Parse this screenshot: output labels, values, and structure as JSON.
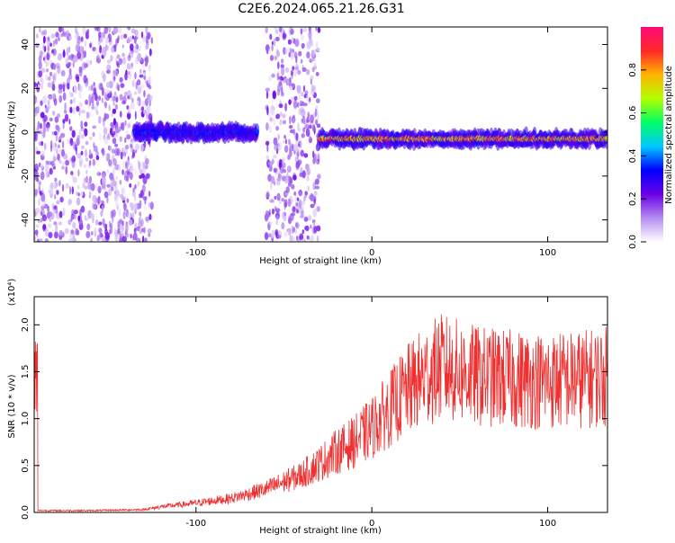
{
  "title": "C2E6.2024.065.21.26.G31",
  "chart_data": [
    {
      "type": "heatmap",
      "xlabel": "Height of straight line (km)",
      "ylabel": "Frequency (Hz)",
      "xlim": [
        -192,
        134
      ],
      "ylim": [
        -50,
        48
      ],
      "xticks": [
        -100,
        0,
        100
      ],
      "yticks": [
        -40,
        -20,
        0,
        20,
        40
      ],
      "colorbar": {
        "label": "Normalized spectral amplitude",
        "range": [
          0.0,
          1.0
        ],
        "ticks": [
          "0.0",
          "0.2",
          "0.4",
          "0.6",
          "0.8"
        ],
        "colors": [
          "#ffffff",
          "#b48cf0",
          "#6a00e6",
          "#0000ff",
          "#00c8ff",
          "#00ff64",
          "#b4ff00",
          "#ffb400",
          "#ff2828",
          "#ff0a78"
        ]
      },
      "features": [
        {
          "x_range": [
            -192,
            -125
          ],
          "freq_range": [
            -50,
            48
          ],
          "amplitude": 0.15,
          "kind": "broadband scatter"
        },
        {
          "x_range": [
            -135,
            -65
          ],
          "freq_center": 0,
          "amplitude": 0.35,
          "kind": "narrow band"
        },
        {
          "x_range": [
            -60,
            -30
          ],
          "freq_range": [
            -50,
            48
          ],
          "amplitude": 0.15,
          "kind": "broadband scatter"
        },
        {
          "x_range": [
            -30,
            134
          ],
          "freq_center": -3,
          "amplitude": 0.85,
          "kind": "narrow band"
        }
      ]
    },
    {
      "type": "line",
      "xlabel": "Height of straight line (km)",
      "ylabel": "SNR (10 * v/v)",
      "yscale_label": "(x10⁴)",
      "xlim": [
        -192,
        134
      ],
      "ylim": [
        0,
        2.3
      ],
      "xticks": [
        -100,
        0,
        100
      ],
      "yticks": [
        0.0,
        0.5,
        1.0,
        1.5,
        2.0
      ],
      "color": "#ee3030",
      "series": [
        {
          "x": [
            -190,
            -160,
            -130,
            -120,
            -100,
            -80,
            -60,
            -40,
            -30,
            -20,
            -10,
            0,
            10,
            20,
            30,
            40,
            50,
            60,
            80,
            100,
            120,
            134
          ],
          "y": [
            0.02,
            0.02,
            0.03,
            0.06,
            0.1,
            0.15,
            0.25,
            0.4,
            0.52,
            0.65,
            0.75,
            0.9,
            1.1,
            1.3,
            1.45,
            1.55,
            1.5,
            1.45,
            1.42,
            1.4,
            1.42,
            1.45
          ]
        }
      ]
    }
  ]
}
